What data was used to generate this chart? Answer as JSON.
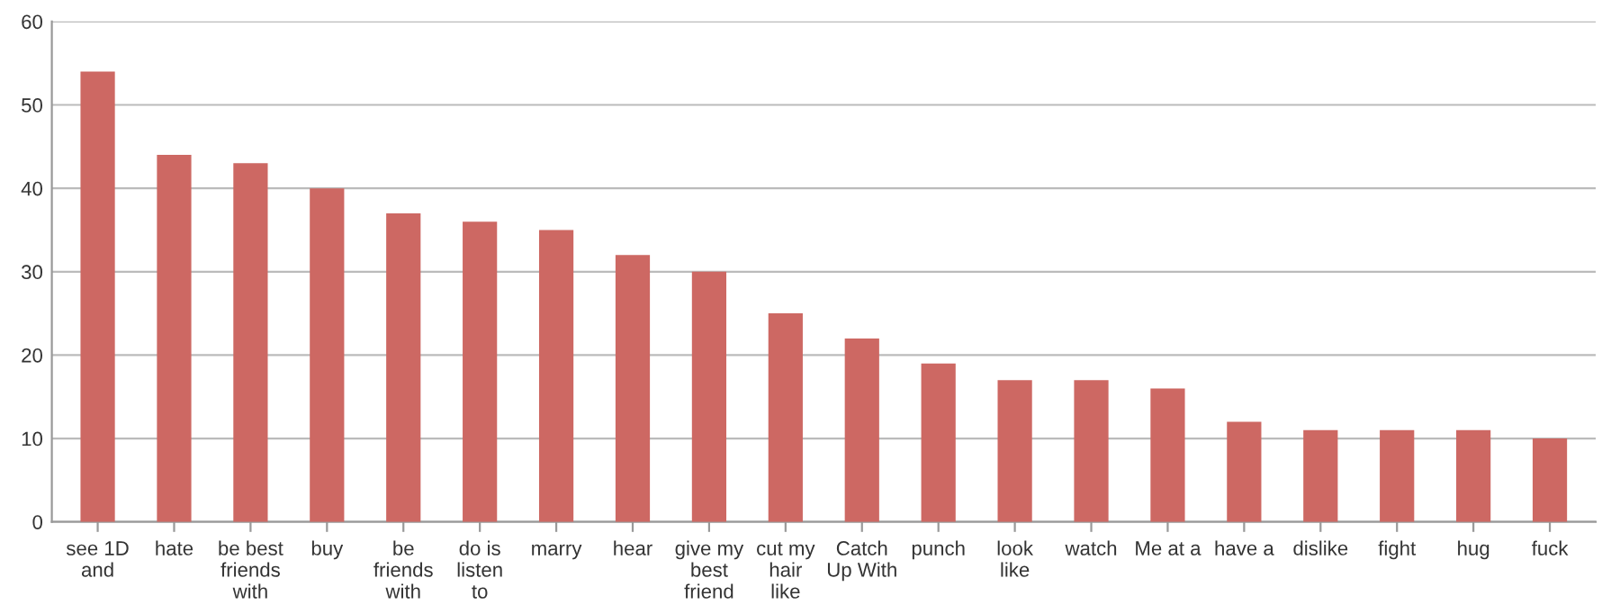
{
  "chart_data": {
    "type": "bar",
    "categories": [
      "see 1D and",
      "hate",
      "be best friends with",
      "buy",
      "be friends with",
      "do is listen to",
      "marry",
      "hear",
      "give my best friend",
      "cut my hair like",
      "Catch Up With",
      "punch",
      "look like",
      "watch",
      "Me at a",
      "have a",
      "dislike",
      "fight",
      "hug",
      "fuck"
    ],
    "values": [
      54,
      44,
      43,
      40,
      37,
      36,
      35,
      32,
      30,
      25,
      22,
      19,
      17,
      17,
      16,
      12,
      11,
      11,
      11,
      10
    ],
    "color": "#cd6863",
    "ylim": [
      0,
      60
    ],
    "yticks": [
      0,
      10,
      20,
      30,
      40,
      50,
      60
    ],
    "grid": "y",
    "legend": false
  }
}
